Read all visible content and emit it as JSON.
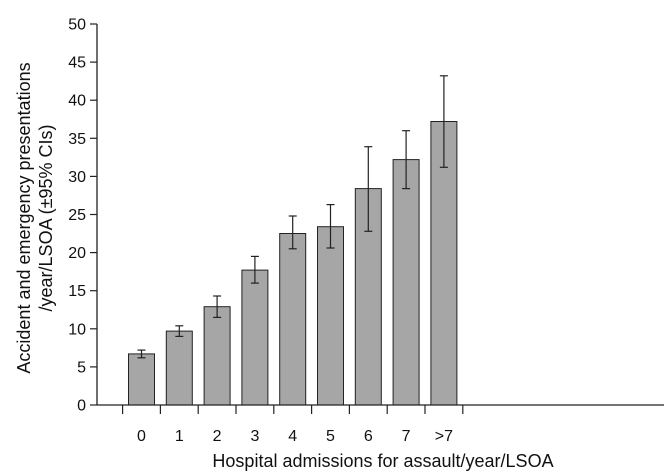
{
  "colors": {
    "bar_fill": "#a6a6a6",
    "bar_stroke": "#222222",
    "axis": "#222222",
    "error_bar": "#222222"
  },
  "chart_data": {
    "type": "bar",
    "title": "",
    "xlabel": "Hospital admissions for assault/year/LSOA",
    "ylabel_lines": [
      "Accident and emergency presentations",
      "/year/LSOA (±95% CIs)"
    ],
    "categories": [
      "0",
      "1",
      "2",
      "3",
      "4",
      "5",
      "6",
      "7",
      ">7"
    ],
    "values": [
      6.7,
      9.7,
      12.9,
      17.7,
      22.5,
      23.4,
      28.4,
      32.2,
      37.2
    ],
    "ci_lower": [
      6.2,
      9.0,
      11.5,
      16.0,
      20.5,
      20.6,
      22.8,
      28.4,
      31.2
    ],
    "ci_upper": [
      7.2,
      10.4,
      14.3,
      19.5,
      24.8,
      26.3,
      33.9,
      36.0,
      43.2
    ],
    "ylim": [
      0,
      50
    ],
    "yticks": [
      "0",
      "5",
      "10",
      "15",
      "20",
      "25",
      "30",
      "35",
      "40",
      "45",
      "50"
    ],
    "grid": false,
    "legend": "none"
  }
}
